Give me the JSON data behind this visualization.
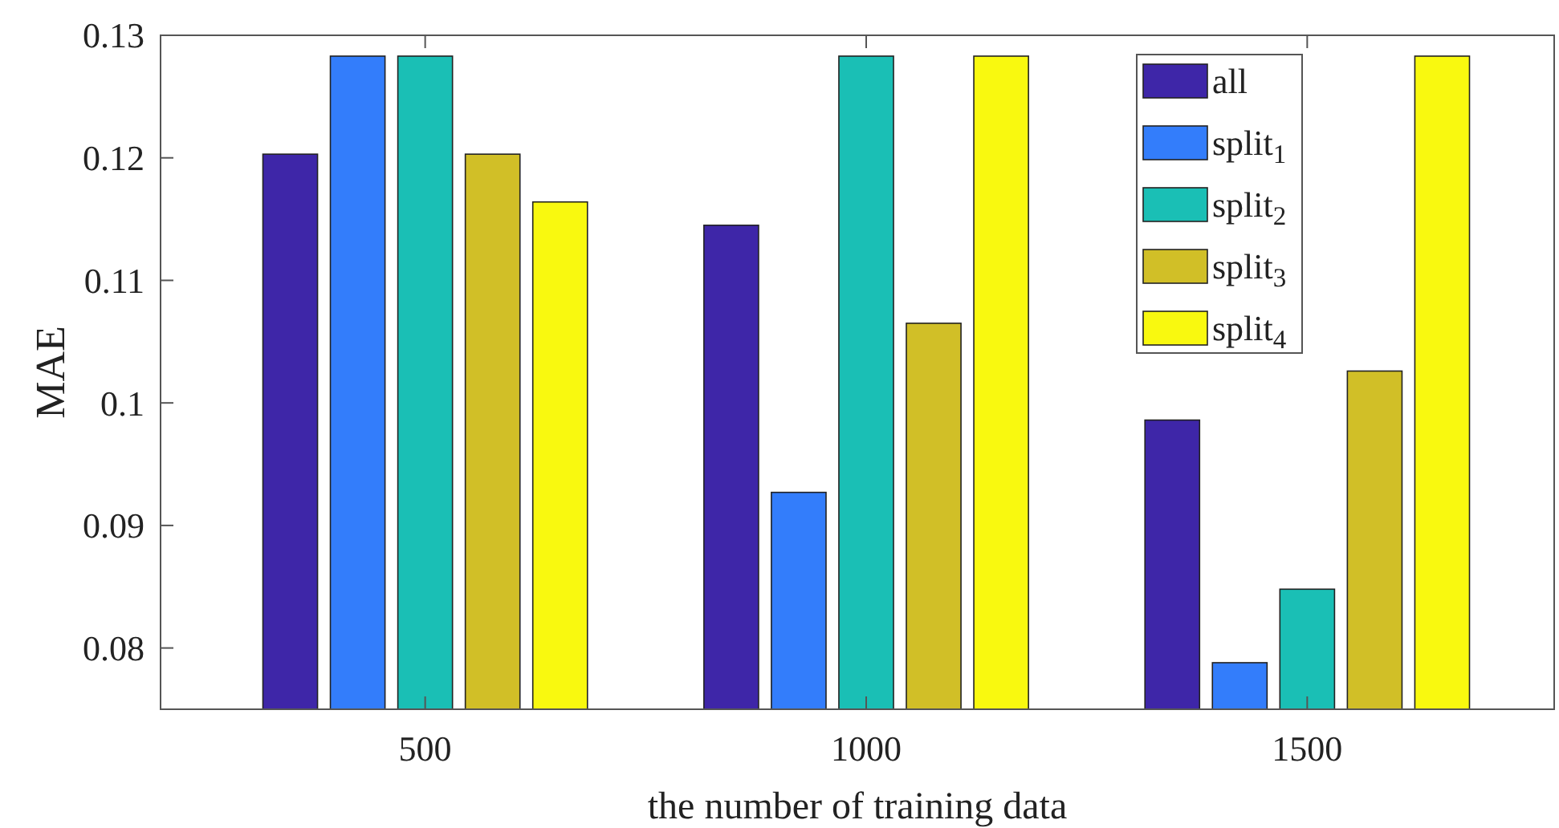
{
  "chart_data": {
    "type": "bar",
    "xlabel": "the number of training data",
    "ylabel": "MAE",
    "categories": [
      "500",
      "1000",
      "1500"
    ],
    "series": [
      {
        "name": "all",
        "color": "#3e26a8",
        "values": [
          0.1203,
          0.1145,
          0.0986
        ]
      },
      {
        "name": "split$_{1}$",
        "color": "#337dfb",
        "values": [
          0.1283,
          0.0927,
          0.0788
        ]
      },
      {
        "name": "split$_{2}$",
        "color": "#1abfb5",
        "values": [
          0.1283,
          0.1283,
          0.0848
        ]
      },
      {
        "name": "split$_{3}$",
        "color": "#d1bf27",
        "values": [
          0.1203,
          0.1065,
          0.1026
        ]
      },
      {
        "name": "split$_{4}$",
        "color": "#f9f90f",
        "values": [
          0.1164,
          0.1283,
          0.1283
        ]
      }
    ],
    "ylim": [
      0.075,
      0.13
    ],
    "yticks": [
      0.08,
      0.09,
      0.1,
      0.11,
      0.12,
      0.13
    ],
    "grid": false,
    "legend": "top right"
  }
}
